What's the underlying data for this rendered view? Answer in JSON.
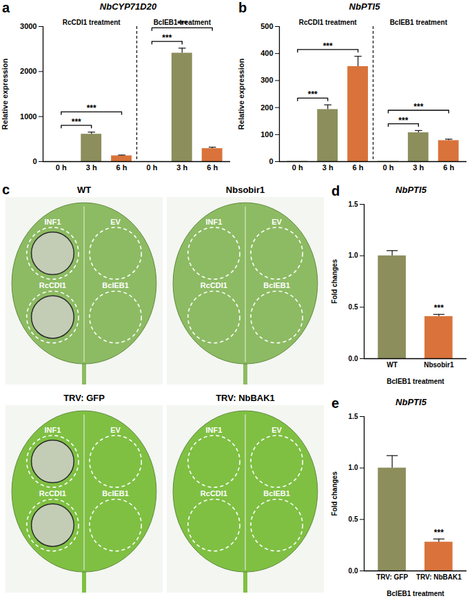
{
  "chart_data": [
    {
      "panel": "a",
      "type": "bar",
      "title": "NbCYP71D20",
      "ylabel": "Relative expression",
      "categories": [
        "0 h",
        "3 h",
        "6 h",
        "0 h",
        "3 h",
        "6 h"
      ],
      "groups": [
        {
          "label": "RcCDI1 treatment",
          "size": 3
        },
        {
          "label": "BcIEB1 treatment",
          "size": 3
        }
      ],
      "values": [
        1,
        610,
        130,
        1,
        2410,
        290
      ],
      "errors": [
        0,
        45,
        15,
        0,
        110,
        30
      ],
      "colors": [
        "#8c8e5c",
        "#8c8e5c",
        "#d9733b",
        "#8c8e5c",
        "#8c8e5c",
        "#d9733b"
      ],
      "ylim": [
        0,
        3000
      ],
      "yticks": [
        0,
        1000,
        2000,
        3000
      ],
      "significance": [
        {
          "from": 0,
          "to": 1,
          "label": "***"
        },
        {
          "from": 0,
          "to": 2,
          "label": "***"
        },
        {
          "from": 3,
          "to": 4,
          "label": "***"
        },
        {
          "from": 3,
          "to": 5,
          "label": "***"
        }
      ]
    },
    {
      "panel": "b",
      "type": "bar",
      "title": "NbPTI5",
      "ylabel": "Relative expression",
      "categories": [
        "0 h",
        "3 h",
        "6 h",
        "0 h",
        "3 h",
        "6 h"
      ],
      "groups": [
        {
          "label": "RcCDI1 treatment",
          "size": 3
        },
        {
          "label": "BcIEB1 treatment",
          "size": 3
        }
      ],
      "values": [
        1,
        193,
        352,
        1,
        107,
        78
      ],
      "errors": [
        0,
        17,
        38,
        0,
        8,
        5
      ],
      "colors": [
        "#8c8e5c",
        "#8c8e5c",
        "#d9733b",
        "#8c8e5c",
        "#8c8e5c",
        "#d9733b"
      ],
      "ylim": [
        0,
        500
      ],
      "yticks": [
        0,
        100,
        200,
        300,
        400,
        500
      ],
      "significance": [
        {
          "from": 0,
          "to": 1,
          "label": "***"
        },
        {
          "from": 0,
          "to": 2,
          "label": "***"
        },
        {
          "from": 3,
          "to": 4,
          "label": "***"
        },
        {
          "from": 3,
          "to": 5,
          "label": "***"
        }
      ]
    },
    {
      "panel": "d",
      "type": "bar",
      "title": "NbPTI5",
      "ylabel": "Fold changes",
      "xlabel": "BcIEB1 treatment",
      "categories": [
        "WT",
        "Nbsobir1"
      ],
      "values": [
        1.0,
        0.41
      ],
      "errors": [
        0.05,
        0.02
      ],
      "colors": [
        "#8c8e5c",
        "#d9733b"
      ],
      "ylim": [
        0,
        1.5
      ],
      "yticks": [
        {
          "value": 0,
          "label": "0.0"
        },
        {
          "value": 0.5,
          "label": "0.5"
        },
        {
          "value": 1,
          "label": "1.0"
        },
        {
          "value": 1.5,
          "label": "1.5"
        }
      ],
      "significance": [
        {
          "from": 1,
          "to": 1,
          "label": "***"
        }
      ]
    },
    {
      "panel": "e",
      "type": "bar",
      "title": "NbPTI5",
      "ylabel": "Fold changes",
      "xlabel": "BcIEB1 treatment",
      "categories": [
        "TRV: GFP",
        "TRV: NbBAK1"
      ],
      "values": [
        1.0,
        0.28
      ],
      "errors": [
        0.12,
        0.03
      ],
      "colors": [
        "#8c8e5c",
        "#d9733b"
      ],
      "ylim": [
        0,
        1.5
      ],
      "yticks": [
        {
          "value": 0,
          "label": "0.0"
        },
        {
          "value": 0.5,
          "label": "0.5"
        },
        {
          "value": 1,
          "label": "1.0"
        },
        {
          "value": 1.5,
          "label": "1.5"
        }
      ],
      "significance": [
        {
          "from": 1,
          "to": 1,
          "label": "***"
        }
      ]
    }
  ],
  "image_panel": {
    "panel": "c",
    "rows": [
      [
        {
          "title": "WT",
          "color": "#8dbb63",
          "spots": [
            {
              "label": "INF1",
              "cell_death": true
            },
            {
              "label": "EV",
              "cell_death": false
            },
            {
              "label": "RcCDI1",
              "cell_death": true
            },
            {
              "label": "BcIEB1",
              "cell_death": false
            }
          ]
        },
        {
          "title": "Nbsobir1",
          "color": "#8dbb63",
          "spots": [
            {
              "label": "INF1",
              "cell_death": false
            },
            {
              "label": "EV",
              "cell_death": false
            },
            {
              "label": "RcCDI1",
              "cell_death": false
            },
            {
              "label": "BcIEB1",
              "cell_death": false
            }
          ]
        }
      ],
      [
        {
          "title": "TRV: GFP",
          "color": "#7fc043",
          "spots": [
            {
              "label": "INF1",
              "cell_death": true
            },
            {
              "label": "EV",
              "cell_death": false
            },
            {
              "label": "RcCDI1",
              "cell_death": true
            },
            {
              "label": "BcIEB1",
              "cell_death": false
            }
          ]
        },
        {
          "title": "TRV: NbBAK1",
          "color": "#7fc043",
          "spots": [
            {
              "label": "INF1",
              "cell_death": false
            },
            {
              "label": "EV",
              "cell_death": false
            },
            {
              "label": "RcCDI1",
              "cell_death": false
            },
            {
              "label": "BcIEB1",
              "cell_death": false
            }
          ]
        }
      ]
    ]
  }
}
